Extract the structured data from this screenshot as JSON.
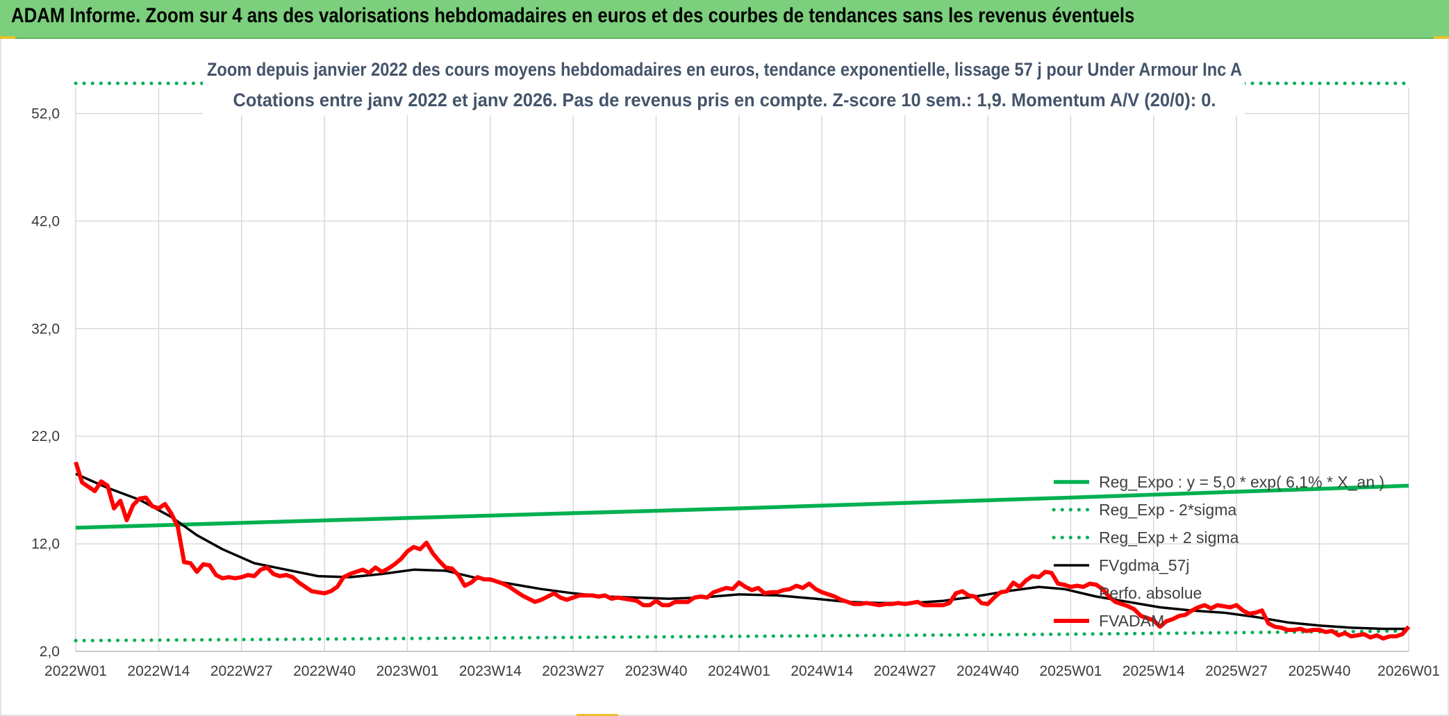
{
  "header": {
    "title": "ADAM Informe. Zoom sur 4 ans des valorisations hebdomadaires en euros et des courbes de tendances sans les revenus éventuels"
  },
  "colors": {
    "banner": "#7ccf7c",
    "reg_expo": "#00b050",
    "fvgdma": "#000000",
    "fvadam": "#ff0000",
    "grid": "#d9d9d9"
  },
  "chart_data": {
    "type": "line",
    "title": "Zoom depuis janvier 2022 des cours moyens hebdomadaires en euros, tendance exponentielle, lissage 57 j pour Under Armour Inc A",
    "subtitle": "Cotations entre janv 2022 et janv 2026. Pas de revenus pris en compte. Z-score 10 sem.: 1,9. Momentum A/V (20/0): 0.",
    "xlabel": "",
    "ylabel": "",
    "ylim": [
      2,
      57
    ],
    "yticks": [
      "2,0",
      "12,0",
      "22,0",
      "32,0",
      "42,0",
      "52,0"
    ],
    "ytick_values": [
      2,
      12,
      22,
      32,
      42,
      52
    ],
    "x_range": [
      0,
      209
    ],
    "xticks": [
      "2022W01",
      "2022W14",
      "2022W27",
      "2022W40",
      "2023W01",
      "2023W14",
      "2023W27",
      "2023W40",
      "2024W01",
      "2024W14",
      "2024W27",
      "2024W40",
      "2025W01",
      "2025W14",
      "2025W27",
      "2025W40",
      "2026W01"
    ],
    "xtick_weeks": [
      0,
      13,
      26,
      39,
      52,
      65,
      78,
      91,
      104,
      117,
      130,
      143,
      156,
      169,
      182,
      195,
      209
    ],
    "grid": true,
    "legend_position": "bottom-right",
    "series": [
      {
        "name": "Reg_Expo : y = 5,0 * exp( 6,1% *  X_an )",
        "style": "solid-thick",
        "color": "#00b050",
        "points": [
          [
            0,
            13.5
          ],
          [
            52,
            14.4
          ],
          [
            104,
            15.3
          ],
          [
            156,
            16.3
          ],
          [
            209,
            17.4
          ]
        ]
      },
      {
        "name": "Reg_Exp - 2*sigma",
        "style": "dotted",
        "color": "#00b050",
        "points": [
          [
            0,
            3.0
          ],
          [
            52,
            3.2
          ],
          [
            104,
            3.4
          ],
          [
            156,
            3.6
          ],
          [
            209,
            3.9
          ]
        ]
      },
      {
        "name": "Reg_Exp + 2 sigma",
        "style": "dotted",
        "color": "#00b050",
        "points": [
          [
            0,
            57.3
          ],
          [
            5,
            57.6
          ],
          [
            10,
            58.1
          ],
          [
            16,
            58.3
          ],
          [
            196,
            58.3
          ],
          [
            209,
            58.3
          ]
        ]
      },
      {
        "name": "FVgdma_57j",
        "style": "solid",
        "color": "#000000",
        "points": [
          [
            0,
            18.5
          ],
          [
            5,
            17.2
          ],
          [
            10,
            16.1
          ],
          [
            15,
            14.5
          ],
          [
            19,
            12.8
          ],
          [
            23,
            11.5
          ],
          [
            28,
            10.2
          ],
          [
            33,
            9.6
          ],
          [
            38,
            9.0
          ],
          [
            43,
            8.9
          ],
          [
            48,
            9.2
          ],
          [
            53,
            9.6
          ],
          [
            58,
            9.5
          ],
          [
            63,
            8.8
          ],
          [
            68,
            8.3
          ],
          [
            73,
            7.8
          ],
          [
            78,
            7.4
          ],
          [
            83,
            7.1
          ],
          [
            88,
            7.0
          ],
          [
            93,
            6.9
          ],
          [
            98,
            7.0
          ],
          [
            104,
            7.3
          ],
          [
            110,
            7.2
          ],
          [
            116,
            6.9
          ],
          [
            121,
            6.6
          ],
          [
            126,
            6.5
          ],
          [
            131,
            6.5
          ],
          [
            136,
            6.7
          ],
          [
            141,
            7.1
          ],
          [
            146,
            7.6
          ],
          [
            151,
            8.0
          ],
          [
            155,
            7.8
          ],
          [
            160,
            7.1
          ],
          [
            165,
            6.6
          ],
          [
            170,
            6.1
          ],
          [
            175,
            5.8
          ],
          [
            180,
            5.6
          ],
          [
            185,
            5.2
          ],
          [
            190,
            4.7
          ],
          [
            195,
            4.4
          ],
          [
            200,
            4.2
          ],
          [
            205,
            4.1
          ],
          [
            209,
            4.1
          ]
        ]
      },
      {
        "name": "Perfo. absolue",
        "style": "none",
        "color": "#ffffff",
        "points": []
      },
      {
        "name": "FVADAM",
        "style": "solid-thick",
        "color": "#ff0000",
        "points": [
          [
            0,
            19.6
          ],
          [
            1,
            17.7
          ],
          [
            2,
            17.3
          ],
          [
            3,
            16.9
          ],
          [
            4,
            17.8
          ],
          [
            5,
            17.4
          ],
          [
            6,
            15.3
          ],
          [
            7,
            16.0
          ],
          [
            8,
            14.2
          ],
          [
            9,
            15.6
          ],
          [
            10,
            16.2
          ],
          [
            11,
            16.3
          ],
          [
            12,
            15.5
          ],
          [
            13,
            15.3
          ],
          [
            14,
            15.7
          ],
          [
            15,
            14.8
          ],
          [
            16,
            13.6
          ],
          [
            17,
            10.3
          ],
          [
            18,
            10.2
          ],
          [
            19,
            9.4
          ],
          [
            20,
            10.1
          ],
          [
            21,
            10.0
          ],
          [
            22,
            9.1
          ],
          [
            23,
            8.8
          ],
          [
            24,
            8.9
          ],
          [
            25,
            8.8
          ],
          [
            26,
            8.9
          ],
          [
            27,
            9.1
          ],
          [
            28,
            9.0
          ],
          [
            29,
            9.6
          ],
          [
            30,
            9.8
          ],
          [
            31,
            9.2
          ],
          [
            32,
            9.0
          ],
          [
            33,
            9.1
          ],
          [
            34,
            8.9
          ],
          [
            35,
            8.4
          ],
          [
            36,
            8.0
          ],
          [
            37,
            7.6
          ],
          [
            38,
            7.5
          ],
          [
            39,
            7.4
          ],
          [
            40,
            7.6
          ],
          [
            41,
            8.0
          ],
          [
            42,
            8.9
          ],
          [
            43,
            9.2
          ],
          [
            44,
            9.4
          ],
          [
            45,
            9.6
          ],
          [
            46,
            9.3
          ],
          [
            47,
            9.8
          ],
          [
            48,
            9.4
          ],
          [
            49,
            9.7
          ],
          [
            50,
            10.1
          ],
          [
            51,
            10.6
          ],
          [
            52,
            11.3
          ],
          [
            53,
            11.7
          ],
          [
            54,
            11.5
          ],
          [
            55,
            12.1
          ],
          [
            56,
            11.1
          ],
          [
            57,
            10.4
          ],
          [
            58,
            9.8
          ],
          [
            59,
            9.7
          ],
          [
            60,
            9.1
          ],
          [
            61,
            8.1
          ],
          [
            62,
            8.4
          ],
          [
            63,
            8.9
          ],
          [
            64,
            8.7
          ],
          [
            65,
            8.7
          ],
          [
            66,
            8.5
          ],
          [
            67,
            8.3
          ],
          [
            68,
            8.0
          ],
          [
            69,
            7.6
          ],
          [
            70,
            7.2
          ],
          [
            71,
            6.9
          ],
          [
            72,
            6.6
          ],
          [
            73,
            6.8
          ],
          [
            74,
            7.1
          ],
          [
            75,
            7.4
          ],
          [
            76,
            7.0
          ],
          [
            77,
            6.8
          ],
          [
            78,
            7.0
          ],
          [
            79,
            7.2
          ],
          [
            80,
            7.2
          ],
          [
            81,
            7.2
          ],
          [
            82,
            7.1
          ],
          [
            83,
            7.2
          ],
          [
            84,
            6.9
          ],
          [
            85,
            7.0
          ],
          [
            86,
            6.9
          ],
          [
            87,
            6.8
          ],
          [
            88,
            6.7
          ],
          [
            89,
            6.3
          ],
          [
            90,
            6.3
          ],
          [
            91,
            6.7
          ],
          [
            92,
            6.3
          ],
          [
            93,
            6.3
          ],
          [
            94,
            6.6
          ],
          [
            95,
            6.6
          ],
          [
            96,
            6.6
          ],
          [
            97,
            7.0
          ],
          [
            98,
            7.1
          ],
          [
            99,
            7.0
          ],
          [
            100,
            7.5
          ],
          [
            101,
            7.7
          ],
          [
            102,
            7.9
          ],
          [
            103,
            7.8
          ],
          [
            104,
            8.4
          ],
          [
            105,
            8.0
          ],
          [
            106,
            7.7
          ],
          [
            107,
            7.9
          ],
          [
            108,
            7.4
          ],
          [
            109,
            7.5
          ],
          [
            110,
            7.5
          ],
          [
            111,
            7.7
          ],
          [
            112,
            7.8
          ],
          [
            113,
            8.1
          ],
          [
            114,
            7.9
          ],
          [
            115,
            8.3
          ],
          [
            116,
            7.8
          ],
          [
            117,
            7.5
          ],
          [
            118,
            7.3
          ],
          [
            119,
            7.1
          ],
          [
            120,
            6.8
          ],
          [
            121,
            6.6
          ],
          [
            122,
            6.4
          ],
          [
            123,
            6.4
          ],
          [
            124,
            6.5
          ],
          [
            125,
            6.4
          ],
          [
            126,
            6.3
          ],
          [
            127,
            6.4
          ],
          [
            128,
            6.4
          ],
          [
            129,
            6.5
          ],
          [
            130,
            6.4
          ],
          [
            131,
            6.5
          ],
          [
            132,
            6.6
          ],
          [
            133,
            6.3
          ],
          [
            134,
            6.3
          ],
          [
            135,
            6.3
          ],
          [
            136,
            6.3
          ],
          [
            137,
            6.5
          ],
          [
            138,
            7.4
          ],
          [
            139,
            7.6
          ],
          [
            140,
            7.2
          ],
          [
            141,
            7.1
          ],
          [
            142,
            6.5
          ],
          [
            143,
            6.4
          ],
          [
            144,
            7.0
          ],
          [
            145,
            7.5
          ],
          [
            146,
            7.6
          ],
          [
            147,
            8.4
          ],
          [
            148,
            8.0
          ],
          [
            149,
            8.6
          ],
          [
            150,
            9.0
          ],
          [
            151,
            8.9
          ],
          [
            152,
            9.4
          ],
          [
            153,
            9.3
          ],
          [
            154,
            8.3
          ],
          [
            155,
            8.2
          ],
          [
            156,
            8.0
          ],
          [
            157,
            8.1
          ],
          [
            158,
            8.0
          ],
          [
            159,
            8.3
          ],
          [
            160,
            8.2
          ],
          [
            161,
            7.8
          ],
          [
            162,
            7.1
          ],
          [
            163,
            6.6
          ],
          [
            164,
            6.4
          ],
          [
            165,
            6.2
          ],
          [
            166,
            5.9
          ],
          [
            167,
            5.3
          ],
          [
            168,
            5.1
          ],
          [
            169,
            4.9
          ],
          [
            170,
            4.3
          ],
          [
            171,
            4.8
          ],
          [
            172,
            5.0
          ],
          [
            173,
            5.3
          ],
          [
            174,
            5.4
          ],
          [
            175,
            5.8
          ],
          [
            176,
            6.1
          ],
          [
            177,
            6.3
          ],
          [
            178,
            6.0
          ],
          [
            179,
            6.3
          ],
          [
            180,
            6.2
          ],
          [
            181,
            6.1
          ],
          [
            182,
            6.3
          ],
          [
            183,
            5.8
          ],
          [
            184,
            5.5
          ],
          [
            185,
            5.6
          ],
          [
            186,
            5.8
          ],
          [
            187,
            4.6
          ],
          [
            188,
            4.3
          ],
          [
            189,
            4.2
          ],
          [
            190,
            4.0
          ],
          [
            191,
            4.0
          ],
          [
            192,
            4.1
          ],
          [
            193,
            3.9
          ],
          [
            194,
            4.0
          ],
          [
            195,
            4.0
          ],
          [
            196,
            3.8
          ],
          [
            197,
            3.9
          ],
          [
            198,
            3.5
          ],
          [
            199,
            3.7
          ],
          [
            200,
            3.4
          ],
          [
            201,
            3.5
          ],
          [
            202,
            3.6
          ],
          [
            203,
            3.3
          ],
          [
            204,
            3.5
          ],
          [
            205,
            3.2
          ],
          [
            206,
            3.4
          ],
          [
            207,
            3.4
          ],
          [
            208,
            3.6
          ],
          [
            209,
            4.3
          ]
        ]
      }
    ]
  }
}
